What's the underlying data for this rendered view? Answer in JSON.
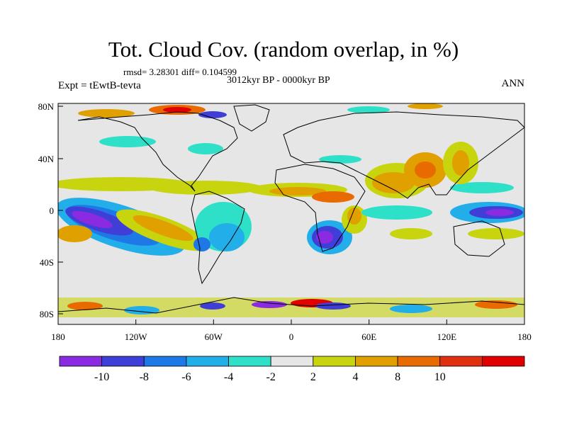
{
  "title": "Tot. Cloud Cov. (random overlap, in %)",
  "stats": "rmsd= 3.28301  diff= 0.104599",
  "period": "3012kyr BP - 0000kyr BP",
  "experiment": "Expt = tEwtB-tevta",
  "season": "ANN",
  "y_ticks": [
    "80N",
    "40N",
    "0",
    "40S",
    "80S"
  ],
  "x_ticks": [
    "180",
    "120W",
    "60W",
    "0",
    "60E",
    "120E",
    "180"
  ],
  "colorbar": {
    "labels": [
      "-10",
      "-8",
      "-6",
      "-4",
      "-2",
      "2",
      "4",
      "8",
      "10"
    ],
    "colors": [
      "#8a2be2",
      "#3f3fd8",
      "#1e78e6",
      "#22aee8",
      "#2ee0c8",
      "#e6e6e6",
      "#c8d40e",
      "#e0a000",
      "#e86a00",
      "#e03010",
      "#e00000"
    ]
  },
  "colors": {
    "background": "#e6e6e6",
    "coastline": "#000000"
  }
}
